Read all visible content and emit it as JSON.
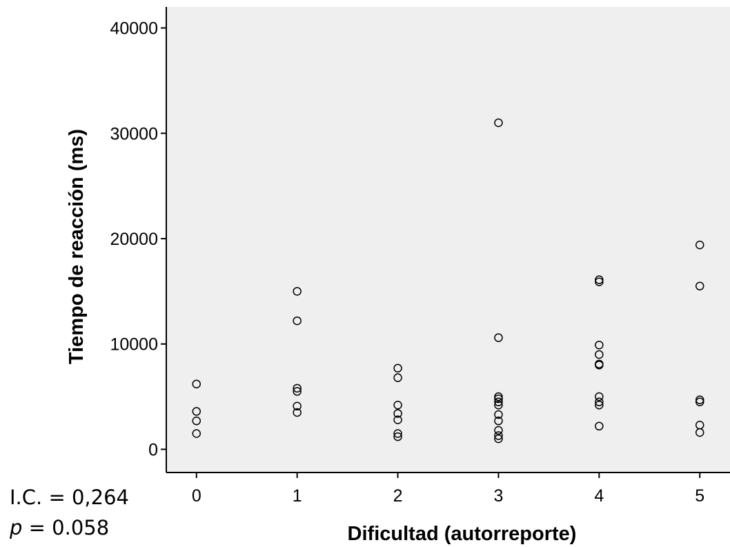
{
  "chart_data": {
    "type": "scatter",
    "title": "",
    "xlabel": "Dificultad (autorreporte)",
    "ylabel": "Tiempo de reacción (ms)",
    "xlim": [
      -0.3,
      5.3
    ],
    "ylim": [
      -2200,
      42000
    ],
    "x_ticks": [
      0,
      1,
      2,
      3,
      4,
      5
    ],
    "x_tick_labels": [
      "0",
      "1",
      "2",
      "3",
      "4",
      "5"
    ],
    "y_ticks": [
      0,
      10000,
      20000,
      30000,
      40000
    ],
    "y_tick_labels": [
      "0",
      "10000",
      "20000",
      "30000",
      "40000"
    ],
    "grid": false,
    "legend": "none",
    "marker": "open-circle",
    "plot_background": "#efefef",
    "series": [
      {
        "points": [
          [
            0,
            6200
          ],
          [
            0,
            3600
          ],
          [
            0,
            2700
          ],
          [
            0,
            1500
          ],
          [
            1,
            15000
          ],
          [
            1,
            12200
          ],
          [
            1,
            5800
          ],
          [
            1,
            5500
          ],
          [
            1,
            4100
          ],
          [
            1,
            3500
          ],
          [
            2,
            7700
          ],
          [
            2,
            6800
          ],
          [
            2,
            4200
          ],
          [
            2,
            3400
          ],
          [
            2,
            2800
          ],
          [
            2,
            1500
          ],
          [
            2,
            1200
          ],
          [
            3,
            31000
          ],
          [
            3,
            10600
          ],
          [
            3,
            5000
          ],
          [
            3,
            4800
          ],
          [
            3,
            4500
          ],
          [
            3,
            4200
          ],
          [
            3,
            3300
          ],
          [
            3,
            2700
          ],
          [
            3,
            1800
          ],
          [
            3,
            1300
          ],
          [
            3,
            1000
          ],
          [
            4,
            16100
          ],
          [
            4,
            15900
          ],
          [
            4,
            9900
          ],
          [
            4,
            9000
          ],
          [
            4,
            8100
          ],
          [
            4,
            8000
          ],
          [
            4,
            5000
          ],
          [
            4,
            4500
          ],
          [
            4,
            4200
          ],
          [
            4,
            2200
          ],
          [
            5,
            19400
          ],
          [
            5,
            15500
          ],
          [
            5,
            4700
          ],
          [
            5,
            4500
          ],
          [
            5,
            2300
          ],
          [
            5,
            1600
          ]
        ]
      }
    ]
  },
  "stats": {
    "ci_text": "I.C. = 0,264",
    "p_symbol": "p",
    "p_value_text": " = 0.058"
  }
}
